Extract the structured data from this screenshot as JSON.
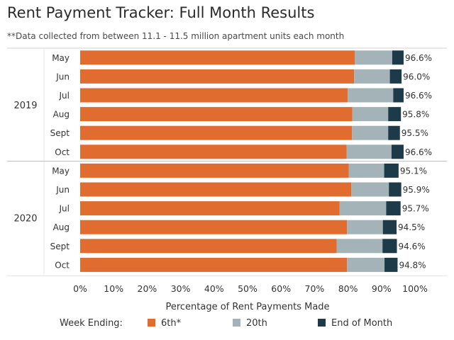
{
  "header": {
    "title": "Rent Payment Tracker: Full Month Results",
    "subtitle": "**Data collected from between 11.1 - 11.5 million apartment units each month"
  },
  "legend": {
    "title": "Week Ending:",
    "items": [
      {
        "label": "6th*",
        "color": "#e06c2f"
      },
      {
        "label": "20th",
        "color": "#a3b3b7"
      },
      {
        "label": "End of Month",
        "color": "#1c3a47"
      }
    ]
  },
  "chart_data": {
    "type": "bar",
    "orientation": "horizontal",
    "stacked": true,
    "title": "Rent Payment Tracker: Full Month Results",
    "subtitle": "**Data collected from between 11.1 - 11.5 million apartment units each month",
    "xlabel": "Percentage of Rent Payments Made",
    "xlim": [
      0,
      100
    ],
    "x_ticks": [
      "0%",
      "10%",
      "20%",
      "30%",
      "40%",
      "50%",
      "60%",
      "70%",
      "80%",
      "90%",
      "100%"
    ],
    "legend_title": "Week Ending:",
    "legend_position": "bottom",
    "groups": [
      {
        "label": "2019",
        "categories": [
          "May",
          "Jun",
          "Jul",
          "Aug",
          "Sept",
          "Oct"
        ]
      },
      {
        "label": "2020",
        "categories": [
          "May",
          "Jun",
          "Jul",
          "Aug",
          "Sept",
          "Oct"
        ]
      }
    ],
    "series": [
      {
        "name": "6th*",
        "color": "#e06c2f",
        "values": [
          82.0,
          81.8,
          79.9,
          81.3,
          81.2,
          79.6,
          80.2,
          81.0,
          77.5,
          79.7,
          76.6,
          79.7
        ]
      },
      {
        "name": "20th",
        "color": "#a3b3b7",
        "values": [
          11.2,
          10.7,
          13.6,
          10.7,
          10.8,
          13.4,
          10.6,
          11.2,
          13.9,
          10.7,
          13.7,
          11.2
        ]
      },
      {
        "name": "End of Month",
        "color": "#1c3a47",
        "values": [
          3.4,
          3.5,
          3.1,
          3.8,
          3.5,
          3.6,
          4.3,
          3.7,
          4.3,
          4.1,
          4.3,
          3.9
        ]
      }
    ],
    "totals": [
      "96.6%",
      "96.0%",
      "96.6%",
      "95.8%",
      "95.5%",
      "96.6%",
      "95.1%",
      "95.9%",
      "95.7%",
      "94.5%",
      "94.6%",
      "94.8%"
    ]
  }
}
